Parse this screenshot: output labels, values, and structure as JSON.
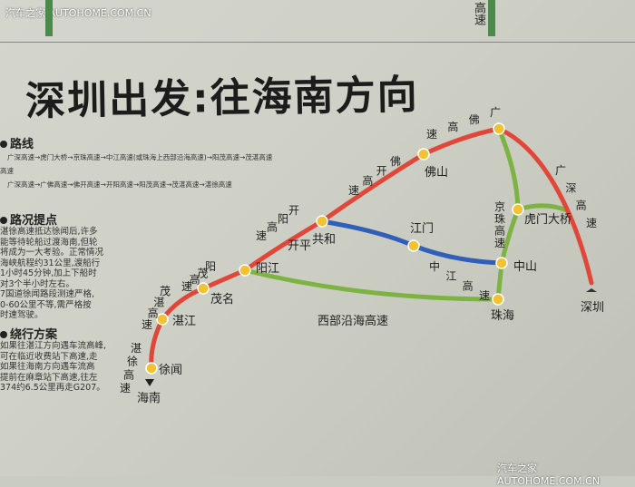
{
  "watermark_top": "汽车之家 AUTOHOME.COM.CN",
  "watermark_bottom": "汽车之家 AUTOHOME.COM.CN",
  "top_fragment": "高速",
  "title": "深圳出发:往海南方向",
  "routes_section": {
    "heading": "路线",
    "lines": [
      "广深高速→虎门大桥→京珠高速→中江高速(或珠海上西部沿海高速)→阳茂高速→茂湛高速",
      "高速",
      "广深高速→广佛高速→佛开高速→开阳高速→阳茂高速→茂湛高速→湛徐高速"
    ]
  },
  "tips_section": {
    "heading": "路况提点",
    "lines": [
      "湛徐高速抵达徐闻后,许多",
      "能等待轮船过渡海南,但轮",
      "将成为一大考验。正常情况",
      "海峡航程约31公里,渡船行",
      "1小时45分钟,加上下船时",
      "对3个半小时左右。",
      "7国道徐闻路段测速严格,",
      "0-60公里不等,需严格按",
      "时速驾驶。"
    ]
  },
  "detour_section": {
    "heading": "绕行方案",
    "lines": [
      "如果往湛江方向遇车流高峰,",
      "可在临近收费站下高速,走",
      "如果往海南方向遇车流高",
      "提前在麻章站下高速,往左",
      "374约6.5公里再走G207。"
    ]
  },
  "map": {
    "colors": {
      "red": "#e0473a",
      "green": "#7cb342",
      "blue": "#2f5fb8",
      "node": "#f2c230"
    },
    "cities": {
      "guangzhou": "",
      "foshan": "佛山",
      "kaiping": "开平",
      "gonghe": "共和",
      "jiangmen": "江门",
      "zhongshan": "中山",
      "zhuhai": "珠海",
      "yangjiang": "阳江",
      "maoming": "茂名",
      "zhanjiang": "湛江",
      "xuwen": "徐闻",
      "humen": "虎门大桥",
      "shenzhen": "深圳",
      "hainan": "海南"
    },
    "roads": {
      "guangfo": "广佛高速",
      "fokai": "佛开高速",
      "kaiyang": "开阳高速",
      "yangmao": "阳茂高速",
      "maozhan": "茂湛高速",
      "zhanxu": "湛徐高速",
      "guangshen": "广深高速",
      "jingzhu": "京珠高速",
      "zhongjiang": "中江高速",
      "west_coast": "西部沿海高速"
    }
  }
}
